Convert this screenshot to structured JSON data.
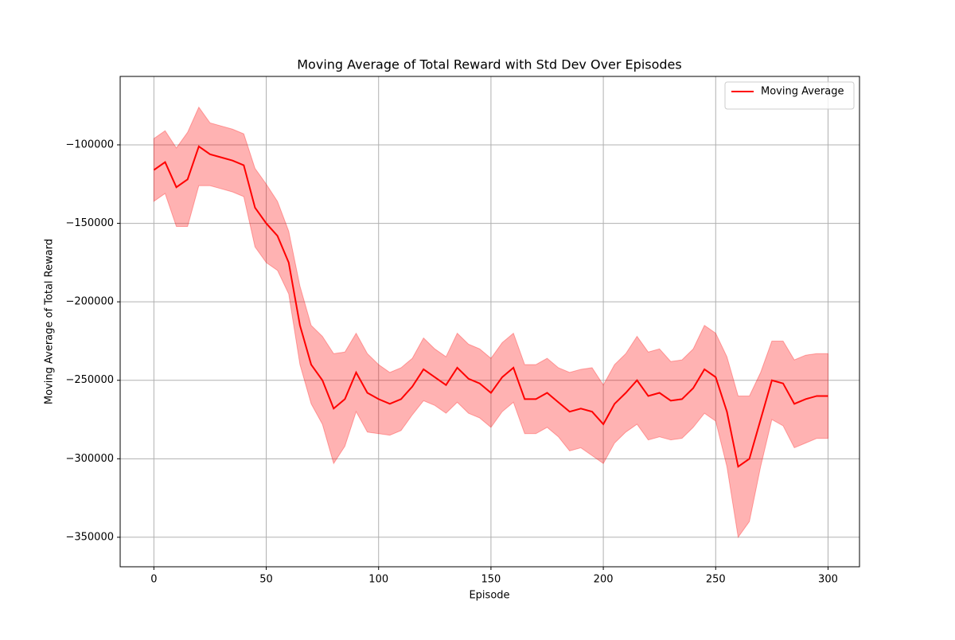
{
  "chart_data": {
    "type": "line",
    "title": "Moving Average of Total Reward with Std Dev Over Episodes",
    "x_label": "Episode",
    "y_label": "Moving Average of Total Reward",
    "x": [
      0,
      5,
      10,
      15,
      20,
      25,
      30,
      35,
      40,
      45,
      50,
      55,
      60,
      65,
      70,
      75,
      80,
      85,
      90,
      95,
      100,
      105,
      110,
      115,
      120,
      125,
      130,
      135,
      140,
      145,
      150,
      155,
      160,
      165,
      170,
      175,
      180,
      185,
      190,
      195,
      200,
      205,
      210,
      215,
      220,
      225,
      230,
      235,
      240,
      245,
      250,
      255,
      260,
      265,
      270,
      275,
      280,
      285,
      290,
      295,
      300
    ],
    "series": [
      {
        "name": "Moving Average",
        "color": "#ff0000",
        "band_color": "#ff0000",
        "band_opacity": 0.3,
        "values": [
          -116000,
          -111000,
          -127000,
          -122000,
          -101000,
          -106000,
          -108000,
          -110000,
          -113000,
          -140000,
          -150000,
          -158000,
          -175000,
          -215000,
          -240000,
          -250000,
          -268000,
          -262000,
          -245000,
          -258000,
          -262000,
          -265000,
          -262000,
          -254000,
          -243000,
          -248000,
          -253000,
          -242000,
          -249000,
          -252000,
          -258000,
          -248000,
          -242000,
          -262000,
          -262000,
          -258000,
          -264000,
          -270000,
          -268000,
          -270000,
          -278000,
          -265000,
          -258000,
          -250000,
          -260000,
          -258000,
          -263000,
          -262000,
          -255000,
          -243000,
          -248000,
          -270000,
          -305000,
          -300000,
          -275000,
          -250000,
          -252000,
          -265000,
          -262000,
          -260000,
          -260000
        ],
        "std": [
          20000,
          20000,
          25000,
          30000,
          25000,
          20000,
          20000,
          20000,
          20000,
          25000,
          25000,
          22000,
          20000,
          25000,
          25000,
          28000,
          35000,
          30000,
          25000,
          25000,
          22000,
          20000,
          20000,
          18000,
          20000,
          18000,
          18000,
          22000,
          22000,
          22000,
          22000,
          22000,
          22000,
          22000,
          22000,
          22000,
          22000,
          25000,
          25000,
          28000,
          25000,
          25000,
          25000,
          28000,
          28000,
          28000,
          25000,
          25000,
          25000,
          28000,
          28000,
          35000,
          45000,
          40000,
          30000,
          25000,
          27000,
          28000,
          28000,
          27000,
          27000
        ]
      }
    ],
    "xlim": [
      -15,
      314
    ],
    "ylim": [
      -368800,
      -56400
    ],
    "xticks": [
      0,
      50,
      100,
      150,
      200,
      250,
      300
    ],
    "yticks": [
      {
        "value": -100000,
        "label": "−100000"
      },
      {
        "value": -150000,
        "label": "−150000"
      },
      {
        "value": -200000,
        "label": "−200000"
      },
      {
        "value": -250000,
        "label": "−250000"
      },
      {
        "value": -300000,
        "label": "−300000"
      },
      {
        "value": -350000,
        "label": "−350000"
      }
    ],
    "grid": true,
    "legend": "upper right"
  }
}
